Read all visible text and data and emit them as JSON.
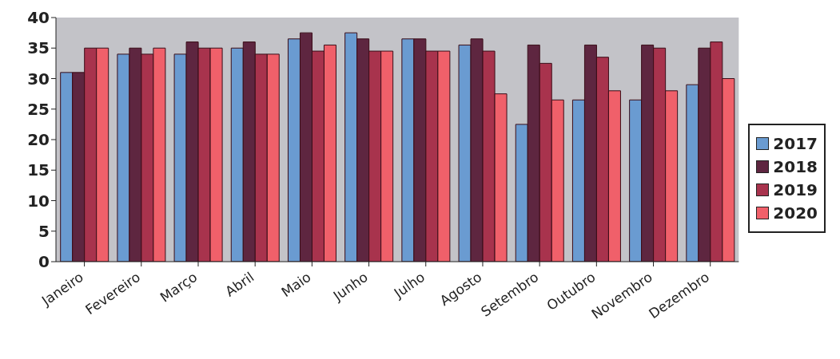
{
  "chart_data": {
    "type": "bar",
    "categories": [
      "Janeiro",
      "Fevereiro",
      "Março",
      "Abril",
      "Maio",
      "Junho",
      "Julho",
      "Agosto",
      "Setembro",
      "Outubro",
      "Novembro",
      "Dezembro"
    ],
    "series": [
      {
        "name": "2017",
        "color": "#6a9bd1",
        "values": [
          31,
          34,
          34,
          35,
          36.5,
          37.5,
          36.5,
          35.5,
          22.5,
          26.5,
          26.5,
          29
        ]
      },
      {
        "name": "2018",
        "color": "#5e2640",
        "values": [
          31,
          35,
          36,
          36,
          37.5,
          36.5,
          36.5,
          36.5,
          35.5,
          35.5,
          35.5,
          35
        ]
      },
      {
        "name": "2019",
        "color": "#a8334d",
        "values": [
          35,
          34,
          35,
          34,
          34.5,
          34.5,
          34.5,
          34.5,
          32.5,
          33.5,
          35,
          36
        ]
      },
      {
        "name": "2020",
        "color": "#f0606a",
        "values": [
          35,
          35,
          35,
          34,
          35.5,
          34.5,
          34.5,
          27.5,
          26.5,
          28,
          28,
          30
        ]
      }
    ],
    "ylim": [
      0,
      40
    ],
    "yticks": [
      0,
      5,
      10,
      15,
      20,
      25,
      30,
      35,
      40
    ],
    "grid": false,
    "legend": "right"
  }
}
